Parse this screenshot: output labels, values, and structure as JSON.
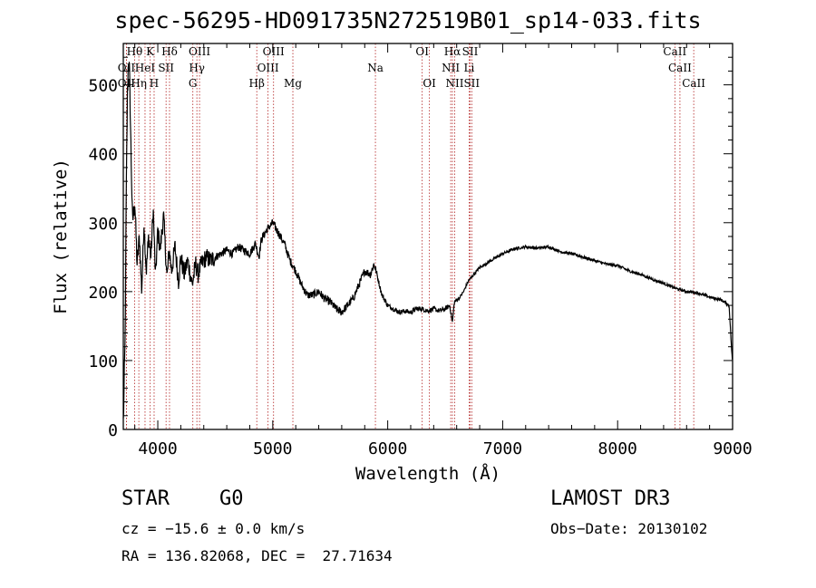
{
  "chart_data": {
    "type": "line",
    "title": "spec-56295-HD091735N272519B01_sp14-033.fits",
    "xlabel": "Wavelength (Å)",
    "ylabel": "Flux (relative)",
    "xlim": [
      3700,
      9000
    ],
    "ylim": [
      0,
      560
    ],
    "xticks": [
      4000,
      5000,
      6000,
      7000,
      8000,
      9000
    ],
    "yticks": [
      0,
      100,
      200,
      300,
      400,
      500
    ],
    "series": [
      {
        "name": "spectrum",
        "x": [
          3700,
          3715,
          3725,
          3735,
          3745,
          3755,
          3765,
          3780,
          3800,
          3820,
          3840,
          3860,
          3880,
          3900,
          3920,
          3940,
          3960,
          3980,
          4000,
          4020,
          4050,
          4080,
          4100,
          4120,
          4150,
          4180,
          4200,
          4230,
          4260,
          4300,
          4330,
          4350,
          4380,
          4420,
          4460,
          4500,
          4550,
          4600,
          4650,
          4700,
          4750,
          4800,
          4850,
          4880,
          4900,
          4950,
          5000,
          5050,
          5100,
          5150,
          5200,
          5250,
          5300,
          5350,
          5400,
          5450,
          5500,
          5550,
          5600,
          5650,
          5700,
          5750,
          5800,
          5850,
          5880,
          5900,
          5920,
          5950,
          6000,
          6050,
          6100,
          6150,
          6200,
          6250,
          6300,
          6350,
          6400,
          6450,
          6500,
          6540,
          6563,
          6580,
          6620,
          6660,
          6700,
          6750,
          6800,
          6900,
          7000,
          7100,
          7200,
          7300,
          7400,
          7500,
          7600,
          7700,
          7800,
          7900,
          8000,
          8100,
          8200,
          8300,
          8400,
          8500,
          8600,
          8700,
          8800,
          8900,
          8970,
          8990,
          9000
        ],
        "y": [
          10,
          120,
          320,
          480,
          540,
          510,
          420,
          300,
          330,
          240,
          280,
          200,
          300,
          230,
          280,
          250,
          320,
          220,
          290,
          260,
          310,
          220,
          260,
          230,
          265,
          215,
          250,
          225,
          245,
          210,
          240,
          225,
          240,
          250,
          245,
          250,
          255,
          260,
          255,
          265,
          260,
          255,
          270,
          250,
          275,
          290,
          300,
          285,
          270,
          245,
          230,
          210,
          195,
          195,
          200,
          190,
          185,
          175,
          170,
          180,
          190,
          210,
          230,
          225,
          240,
          230,
          215,
          195,
          180,
          175,
          170,
          172,
          170,
          175,
          175,
          172,
          175,
          172,
          175,
          180,
          155,
          185,
          190,
          200,
          215,
          225,
          235,
          245,
          255,
          262,
          265,
          263,
          265,
          258,
          255,
          250,
          245,
          240,
          238,
          230,
          225,
          218,
          212,
          205,
          200,
          198,
          192,
          188,
          180,
          120,
          95
        ]
      }
    ],
    "lines": [
      {
        "label": "Hθ",
        "wave": 3798,
        "row": 0
      },
      {
        "label": "K",
        "wave": 3934,
        "row": 0
      },
      {
        "label": "Hδ",
        "wave": 4102,
        "row": 0
      },
      {
        "label": "OIII",
        "wave": 4363,
        "row": 0
      },
      {
        "label": "OIII",
        "wave": 5007,
        "row": 0
      },
      {
        "label": "OI",
        "wave": 6300,
        "row": 0
      },
      {
        "label": "Hα",
        "wave": 6563,
        "row": 0
      },
      {
        "label": "SII",
        "wave": 6717,
        "row": 0
      },
      {
        "label": "CaII",
        "wave": 8498,
        "row": 0
      },
      {
        "label": "OII",
        "wave": 3727,
        "row": 1
      },
      {
        "label": "HeI",
        "wave": 3889,
        "row": 1
      },
      {
        "label": "SII",
        "wave": 4072,
        "row": 1
      },
      {
        "label": "Hγ",
        "wave": 4340,
        "row": 1
      },
      {
        "label": "OIII",
        "wave": 4959,
        "row": 1
      },
      {
        "label": "Na",
        "wave": 5893,
        "row": 1
      },
      {
        "label": "NII",
        "wave": 6548,
        "row": 1
      },
      {
        "label": "Li",
        "wave": 6708,
        "row": 1
      },
      {
        "label": "CaII",
        "wave": 8542,
        "row": 1
      },
      {
        "label": "OII",
        "wave": 3727,
        "row": 2
      },
      {
        "label": "Hη",
        "wave": 3835,
        "row": 2
      },
      {
        "label": "H",
        "wave": 3968,
        "row": 2
      },
      {
        "label": "G",
        "wave": 4305,
        "row": 2
      },
      {
        "label": "Hβ",
        "wave": 4861,
        "row": 2
      },
      {
        "label": "Mg",
        "wave": 5175,
        "row": 2
      },
      {
        "label": "OI",
        "wave": 6363,
        "row": 2
      },
      {
        "label": "NII",
        "wave": 6583,
        "row": 2
      },
      {
        "label": "SII",
        "wave": 6731,
        "row": 2
      },
      {
        "label": "CaII",
        "wave": 8662,
        "row": 2
      }
    ]
  },
  "info": {
    "object_class": "STAR",
    "subclass": "G0",
    "survey": "LAMOST DR3",
    "cz_text": "cz = −15.6 ± 0.0 km/s",
    "obs_date": "Obs−Date: 20130102",
    "coords": "RA = 136.82068, DEC =  27.71634"
  },
  "colors": {
    "spectrum": "#000000",
    "line_markers": "#b22222",
    "background": "#ffffff"
  }
}
